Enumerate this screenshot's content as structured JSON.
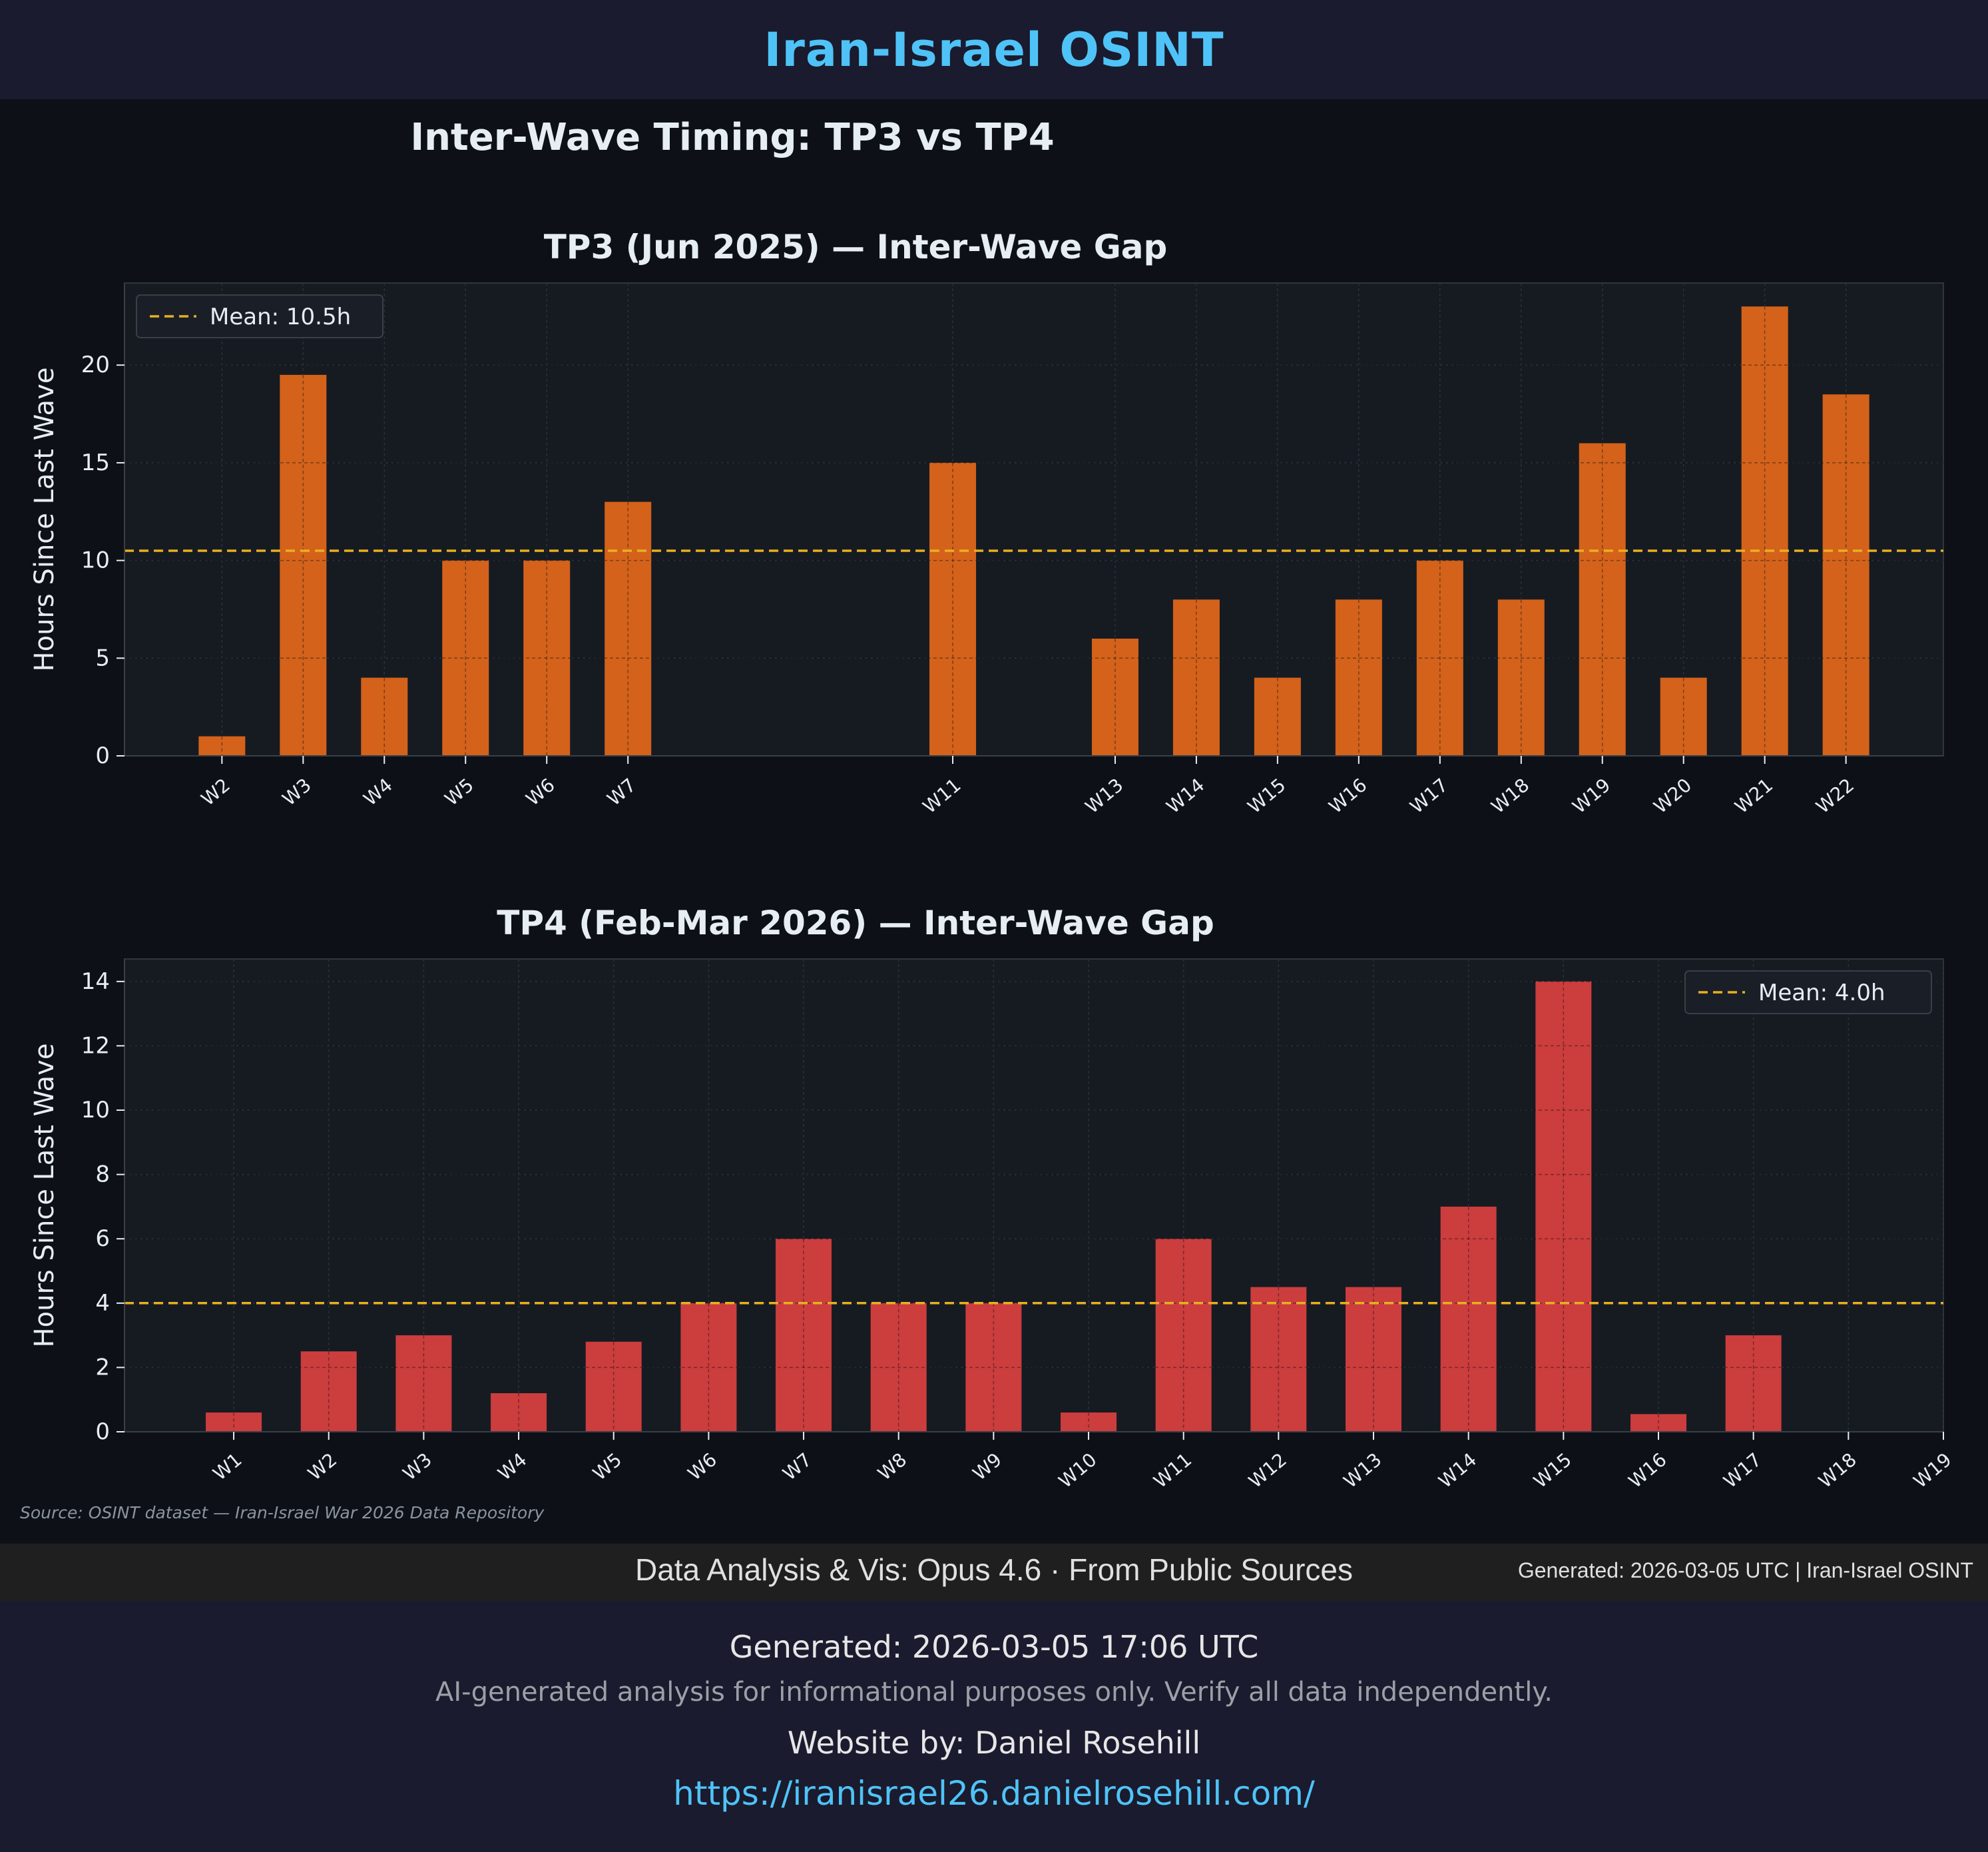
{
  "header": {
    "title": "Iran-Israel OSINT"
  },
  "figure": {
    "suptitle": "Inter-Wave Timing: TP3 vs TP4",
    "source_note": "Source: OSINT dataset — Iran-Israel War 2026 Data Repository"
  },
  "colors": {
    "tp3_bar": "#d4621a",
    "tp4_bar": "#cc3d3d",
    "mean_line": "#e8b020",
    "panel_bg": "#161b22",
    "figure_bg": "#0d1117",
    "text": "#e6edf3"
  },
  "chart_data": [
    {
      "type": "bar",
      "title": "TP3 (Jun 2025) — Inter-Wave Gap",
      "xlabel": "",
      "ylabel": "Hours Since Last Wave",
      "wave_index": [
        2,
        3,
        4,
        5,
        6,
        7,
        11,
        13,
        14,
        15,
        16,
        17,
        18,
        19,
        20,
        21,
        22
      ],
      "categories": [
        "W2",
        "W3",
        "W4",
        "W5",
        "W6",
        "W7",
        "W11",
        "W13",
        "W14",
        "W15",
        "W16",
        "W17",
        "W18",
        "W19",
        "W20",
        "W21",
        "W22"
      ],
      "values": [
        1,
        19.5,
        4,
        10,
        10,
        13,
        15,
        6,
        8,
        4,
        8,
        10,
        8,
        16,
        4,
        23,
        18.5
      ],
      "xlim": [
        0.8,
        23.2
      ],
      "ylim": [
        0,
        24.2
      ],
      "yticks": [
        0,
        5,
        10,
        15,
        20
      ],
      "mean": 10.5,
      "legend": {
        "label": "Mean: 10.5h",
        "placement": "upper-left"
      },
      "grid": true
    },
    {
      "type": "bar",
      "title": "TP4 (Feb-Mar 2026) — Inter-Wave Gap",
      "xlabel": "",
      "ylabel": "Hours Since Last Wave",
      "wave_index": [
        1,
        2,
        3,
        4,
        5,
        6,
        7,
        8,
        9,
        10,
        11,
        12,
        13,
        14,
        15,
        16,
        17,
        18,
        19
      ],
      "categories": [
        "W1",
        "W2",
        "W3",
        "W4",
        "W5",
        "W6",
        "W7",
        "W8",
        "W9",
        "W10",
        "W11",
        "W12",
        "W13",
        "W14",
        "W15",
        "W16",
        "W17",
        "W18",
        "W19"
      ],
      "values": [
        0.6,
        2.5,
        3,
        1.2,
        2.8,
        4,
        6,
        4,
        4,
        0.6,
        6,
        4.5,
        4.5,
        7,
        14,
        0.55,
        3,
        null,
        null
      ],
      "xlim": [
        -0.15,
        19.0
      ],
      "ylim": [
        0,
        14.7
      ],
      "yticks": [
        0,
        2,
        4,
        6,
        8,
        10,
        12,
        14
      ],
      "mean": 4.0,
      "legend": {
        "label": "Mean: 4.0h",
        "placement": "upper-right"
      },
      "grid": true
    }
  ],
  "banner": {
    "center": "Data Analysis & Vis: Opus 4.6 · From Public Sources",
    "right": "Generated: 2026-03-05 UTC | Iran-Israel OSINT"
  },
  "footer": {
    "generated": "Generated: 2026-03-05 17:06 UTC",
    "disclaimer": "AI-generated analysis for informational purposes only. Verify all data independently.",
    "author": "Website by: Daniel Rosehill",
    "url": "https://iranisrael26.danielrosehill.com/"
  }
}
